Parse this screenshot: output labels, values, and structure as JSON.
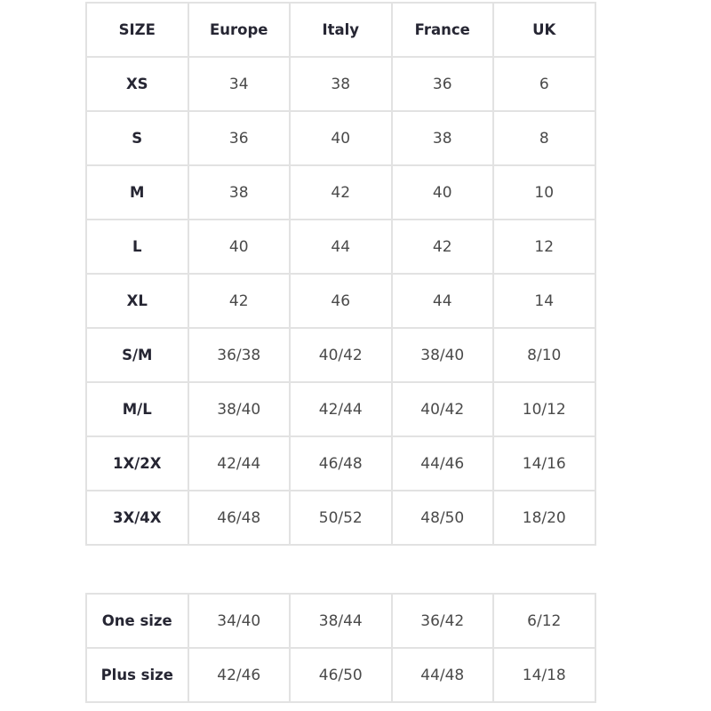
{
  "size_table": {
    "headers": [
      "SIZE",
      "Europe",
      "Italy",
      "France",
      "UK"
    ],
    "rows": [
      [
        "XS",
        "34",
        "38",
        "36",
        "6"
      ],
      [
        "S",
        "36",
        "40",
        "38",
        "8"
      ],
      [
        "M",
        "38",
        "42",
        "40",
        "10"
      ],
      [
        "L",
        "40",
        "44",
        "42",
        "12"
      ],
      [
        "XL",
        "42",
        "46",
        "44",
        "14"
      ],
      [
        "S/M",
        "36/38",
        "40/42",
        "38/40",
        "8/10"
      ],
      [
        "M/L",
        "38/40",
        "42/44",
        "40/42",
        "10/12"
      ],
      [
        "1X/2X",
        "42/44",
        "46/48",
        "44/46",
        "14/16"
      ],
      [
        "3X/4X",
        "46/48",
        "50/52",
        "48/50",
        "18/20"
      ]
    ]
  },
  "range_table": {
    "rows": [
      [
        "One size",
        "34/40",
        "38/44",
        "36/42",
        "6/12"
      ],
      [
        "Plus size",
        "42/46",
        "46/50",
        "44/48",
        "14/18"
      ]
    ]
  }
}
